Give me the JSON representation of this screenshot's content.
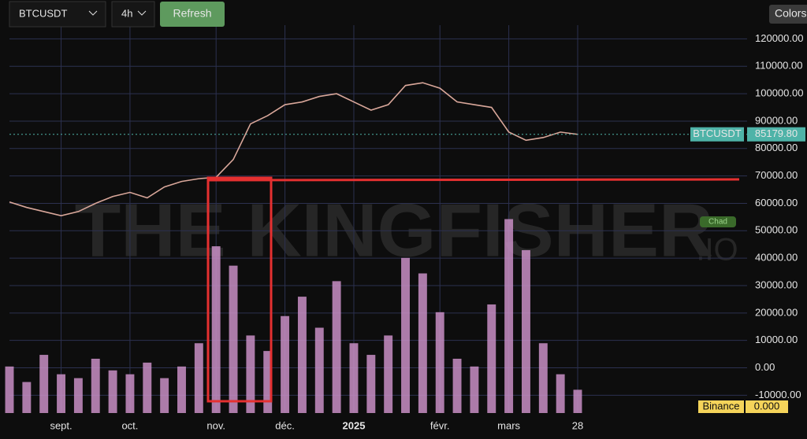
{
  "toolbar": {
    "symbol": "BTCUSDT",
    "interval": "4h",
    "refresh": "Refresh",
    "colors": "Colors"
  },
  "watermark": {
    "main": "THE KINGFISHER",
    "suffix": ".IO"
  },
  "badge": "Chad",
  "chart_data": {
    "type": "line",
    "categories": [
      null,
      null,
      null,
      "sept.",
      null,
      null,
      null,
      "oct.",
      null,
      null,
      null,
      null,
      "nov.",
      null,
      null,
      null,
      "déc.",
      null,
      null,
      null,
      "2025",
      null,
      null,
      null,
      null,
      "févr.",
      null,
      null,
      null,
      "mars",
      null,
      null,
      null,
      "28"
    ],
    "series": [
      {
        "name": "BTCUSDT",
        "color": "#d9a79a",
        "values": [
          60500,
          58500,
          57000,
          55500,
          57000,
          60000,
          62500,
          64000,
          62000,
          66000,
          68000,
          69000,
          69500,
          76000,
          89000,
          92000,
          96000,
          97000,
          99000,
          100000,
          97000,
          94000,
          96000,
          103000,
          104000,
          102000,
          97000,
          96000,
          95000,
          86000,
          83000,
          84000,
          86000,
          85179.8
        ]
      }
    ],
    "volume": {
      "color": "#c98fc6",
      "values": [
        12,
        8,
        15,
        10,
        9,
        14,
        11,
        10,
        13,
        9,
        12,
        18,
        43,
        38,
        20,
        16,
        25,
        30,
        22,
        34,
        18,
        15,
        20,
        40,
        36,
        26,
        14,
        12,
        28,
        50,
        42,
        18,
        10,
        6
      ]
    },
    "y2lim": [
      0,
      100
    ],
    "last_price": {
      "value": 85179.8,
      "label": "85179.80",
      "color": "#4fb3a8"
    },
    "ylim": [
      -16500,
      125000
    ],
    "yticks": [
      {
        "value": -10000,
        "label": "-10000.00"
      },
      {
        "value": 0,
        "label": "0.00"
      },
      {
        "value": 10000,
        "label": "10000.00"
      },
      {
        "value": 20000,
        "label": "20000.00"
      },
      {
        "value": 30000,
        "label": "30000.00"
      },
      {
        "value": 40000,
        "label": "40000.00"
      },
      {
        "value": 50000,
        "label": "50000.00"
      },
      {
        "value": 60000,
        "label": "60000.00"
      },
      {
        "value": 70000,
        "label": "70000.00"
      },
      {
        "value": 80000,
        "label": "80000.00"
      },
      {
        "value": 90000,
        "label": "90000.00"
      },
      {
        "value": 100000,
        "label": "100000.00"
      },
      {
        "value": 110000,
        "label": "110000.00"
      },
      {
        "value": 120000,
        "label": "120000.00"
      }
    ],
    "grid": true,
    "exchange": {
      "name": "Binance",
      "value": "0.000"
    }
  }
}
